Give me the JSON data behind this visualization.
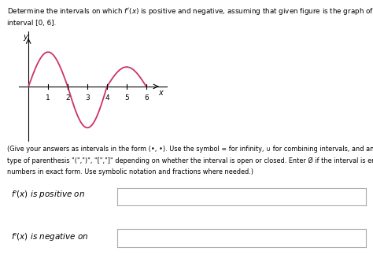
{
  "title_line1": "Determine the intervals on which f'(x) is positive and negative, assuming that given figure is the graph of f. Consider only the",
  "title_line2": "interval [0, 6].",
  "instr_line1": "(Give your answers as intervals in the form (*, *). Use the symbol oo for infinity, U for combining intervals, and an appropriate",
  "instr_line2": "type of parenthesis \"(\",\")\", \"[\",\"]\" depending on whether the interval is open or closed. Enter 0 if the interval is empty. Express",
  "instr_line3": "numbers in exact form. Use symbolic notation and fractions where needed.)",
  "label_positive": "f'(x) is positive on",
  "label_negative": "f'(x) is negative on",
  "curve_color": "#cc3366",
  "axis_color": "#000000",
  "background_color": "#ffffff",
  "x_ticks": [
    1,
    2,
    3,
    4,
    5,
    6
  ],
  "y_label": "y",
  "x_label": "x",
  "seg1_amp": 1.5,
  "seg2_amp": 1.8,
  "seg3_amp": 0.85,
  "box_edge_color": "#aaaaaa"
}
